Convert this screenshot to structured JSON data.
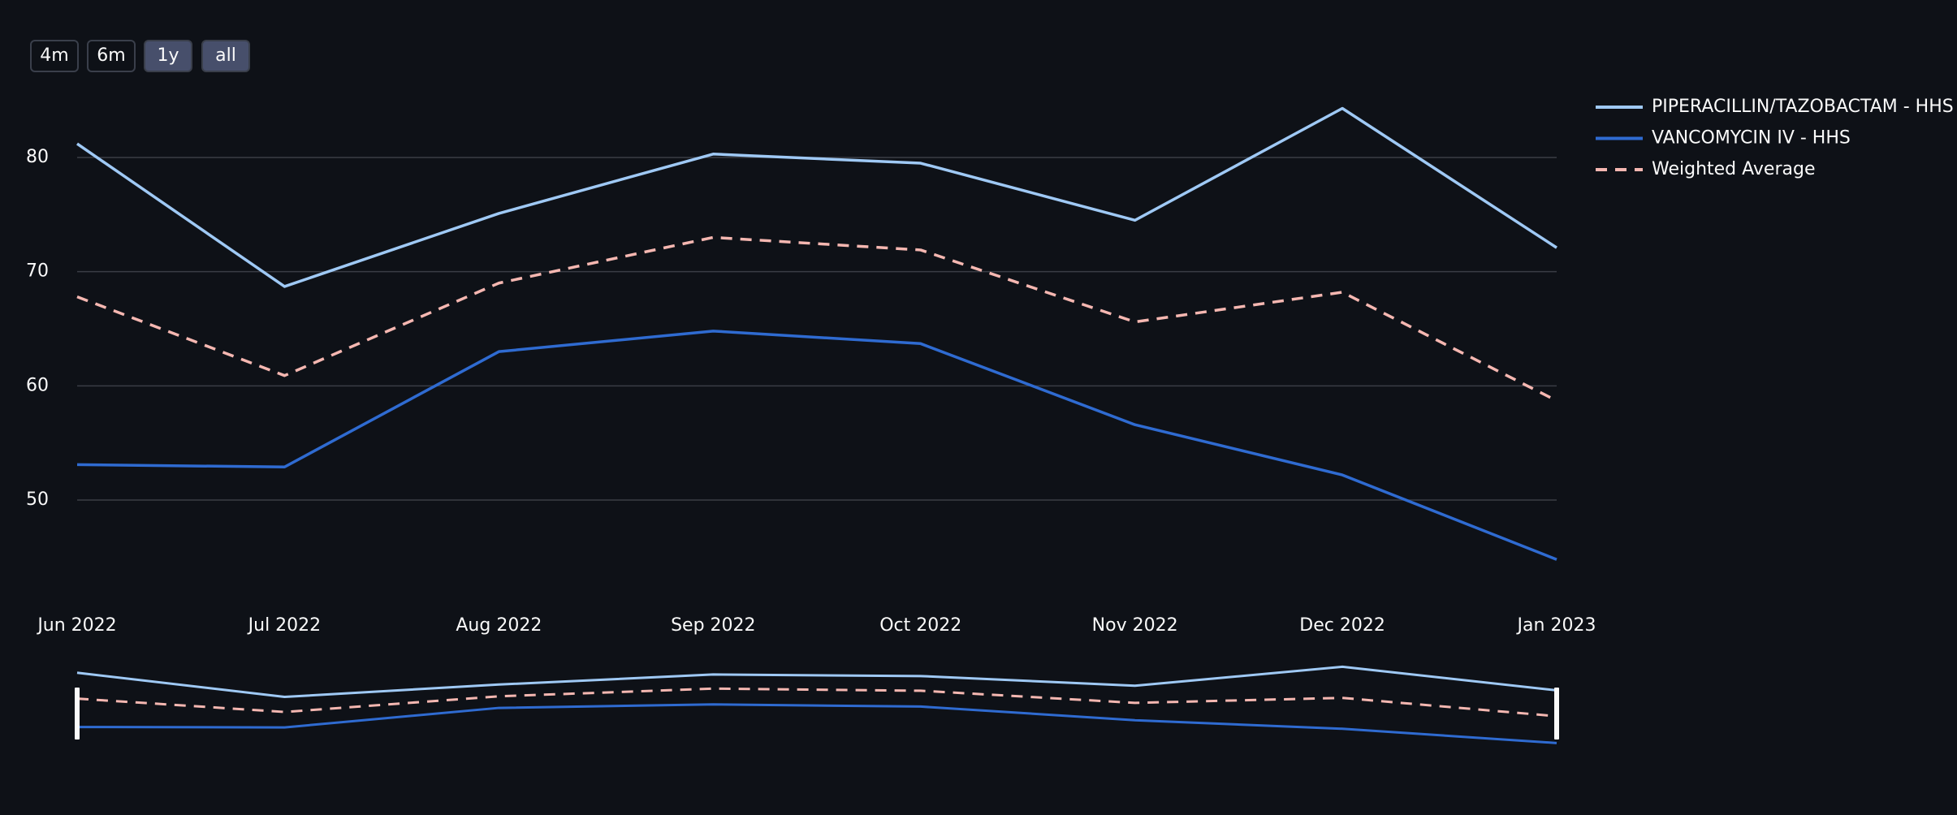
{
  "chart_data": {
    "type": "line",
    "categories": [
      "Jun 2022",
      "Jul 2022",
      "Aug 2022",
      "Sep 2022",
      "Oct 2022",
      "Nov 2022",
      "Dec 2022",
      "Jan 2023"
    ],
    "series": [
      {
        "name": "PIPERACILLIN/TAZOBACTAM - HHS",
        "color": "#9fc9f5",
        "dash": false,
        "values": [
          81.2,
          68.7,
          75.1,
          80.3,
          79.5,
          74.5,
          84.3,
          72.1
        ]
      },
      {
        "name": "VANCOMYCIN IV - HHS",
        "color": "#2f6bd1",
        "dash": false,
        "values": [
          53.1,
          52.9,
          63.0,
          64.8,
          63.7,
          56.6,
          52.2,
          44.8
        ]
      },
      {
        "name": "Weighted Average",
        "color": "#f5b7b1",
        "dash": true,
        "values": [
          67.8,
          60.9,
          69.0,
          73.0,
          71.9,
          65.6,
          68.2,
          58.7
        ]
      }
    ],
    "ylim": [
      42,
      87
    ],
    "yticks": [
      50,
      60,
      70,
      80
    ],
    "grid": true,
    "range_slider": true
  },
  "range_buttons": [
    {
      "label": "4m",
      "active": false
    },
    {
      "label": "6m",
      "active": false
    },
    {
      "label": "1y",
      "active": true
    },
    {
      "label": "all",
      "active": true
    }
  ]
}
